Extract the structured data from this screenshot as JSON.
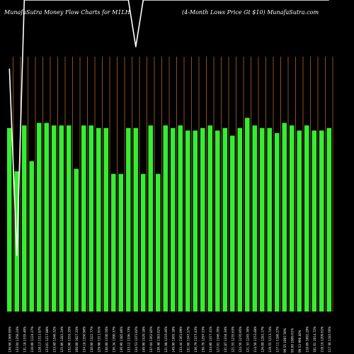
{
  "header": {
    "title_left": "MunafaSutra  Money Flow  Charts for M1LH",
    "title_right": "(4-Month Lows Price    Gt $10) MunafaSutra.com"
  },
  "colors": {
    "background": "#000000",
    "bar": "#33ee33",
    "grid": "#b5651d",
    "line": "#ffffff",
    "label": "#ffffff"
  },
  "chart_data": {
    "type": "bar",
    "ylim": [
      0,
      100
    ],
    "grid": "vertical",
    "categories": [
      "136.66 1369.95%",
      "133.04 1358.24%",
      "131.18 1335.40%",
      "110.00 1124.27%",
      "128.13 1311.87%",
      "123.01 1217.88%",
      "133.60 1346.32%",
      "125.80 1281.24%",
      "132.90 1316.35%",
      "100.00 1027.33%",
      "134.18 1350.90%",
      "130.00 1322.77%",
      "129.98 1311.91%",
      "130.00 1330.50%",
      "136.34 1390.37%",
      "136.90 1385.86%",
      "133.12 1336.73%",
      "134.53 1373.02%",
      "149.90 1529.18%",
      "137.04 1362.85%",
      "136.48 1383.02%",
      "121.08 1219.46%",
      "149.90 1505.18%",
      "133.44 1363.09%",
      "131.60 1347.57%",
      "136.79 1377.43%",
      "130.70 1297.53%",
      "134.80 1377.31%",
      "127.01 1346.70%",
      "131.87 1334.34%",
      "121.55 1235.63%",
      "124.56 1270.95%",
      "121.33 1245.78%",
      "114.50 1153.48%",
      "126.00 1281.17%",
      "119.55 1213.74%",
      "117.11 1186.27%",
      "99.55 1007.50%",
      "95.00 1009.01%",
      "99.53 999.40%",
      "110.09 1092.29%",
      "101.61 1014.72%",
      "118.16 1209.61%",
      "117.30 1183.56%"
    ],
    "series": [
      {
        "values": [
          72,
          55,
          73,
          59,
          74,
          74,
          73,
          73,
          73,
          56,
          73,
          73,
          72,
          72,
          54,
          54,
          72,
          72,
          54,
          73,
          54,
          73,
          72,
          73,
          71,
          71,
          72,
          73,
          71,
          72,
          69,
          72,
          76,
          73,
          72,
          72,
          70,
          74,
          73,
          71,
          73,
          71,
          71,
          72
        ]
      },
      {
        "values": [
          78,
          18,
          100,
          100,
          100,
          100,
          100,
          100,
          100,
          100,
          100,
          100,
          100,
          100,
          100,
          100,
          100,
          85,
          100,
          100,
          100,
          100,
          100,
          100,
          100,
          100,
          100,
          100,
          100,
          100,
          100,
          100,
          100,
          100,
          100,
          100,
          100,
          100,
          100,
          100,
          100,
          100,
          100,
          100
        ]
      }
    ]
  }
}
